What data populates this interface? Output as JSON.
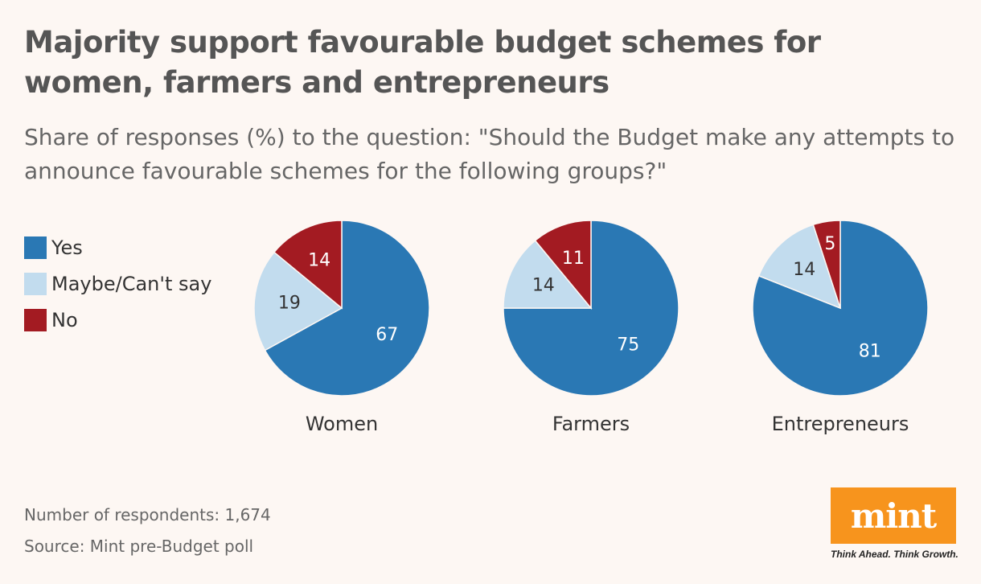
{
  "title": "Majority support favourable budget schemes for women, farmers and entrepreneurs",
  "subtitle": "Share of responses (%) to the question: \"Should the Budget make any attempts to announce favourable schemes for the following groups?\"",
  "legend": [
    {
      "label": "Yes",
      "color": "#2a78b4"
    },
    {
      "label": "Maybe/Can't say",
      "color": "#c2dcee"
    },
    {
      "label": "No",
      "color": "#a31b22"
    }
  ],
  "chart_data": {
    "type": "pie",
    "series_order": [
      "Yes",
      "Maybe/Can't say",
      "No"
    ],
    "colors": {
      "Yes": "#2a78b4",
      "Maybe/Can't say": "#c2dcee",
      "No": "#a31b22"
    },
    "pies": [
      {
        "name": "Women",
        "values": {
          "Yes": 67,
          "Maybe/Can't say": 19,
          "No": 14
        }
      },
      {
        "name": "Farmers",
        "values": {
          "Yes": 75,
          "Maybe/Can't say": 14,
          "No": 11
        }
      },
      {
        "name": "Entrepreneurs",
        "values": {
          "Yes": 81,
          "Maybe/Can't say": 14,
          "No": 5
        }
      }
    ]
  },
  "footer": {
    "respondents": "Number of respondents: 1,674",
    "source": "Source: Mint pre-Budget poll"
  },
  "logo": {
    "text": "mint",
    "tagline": "Think Ahead. Think Growth.",
    "color": "#f7941d"
  }
}
